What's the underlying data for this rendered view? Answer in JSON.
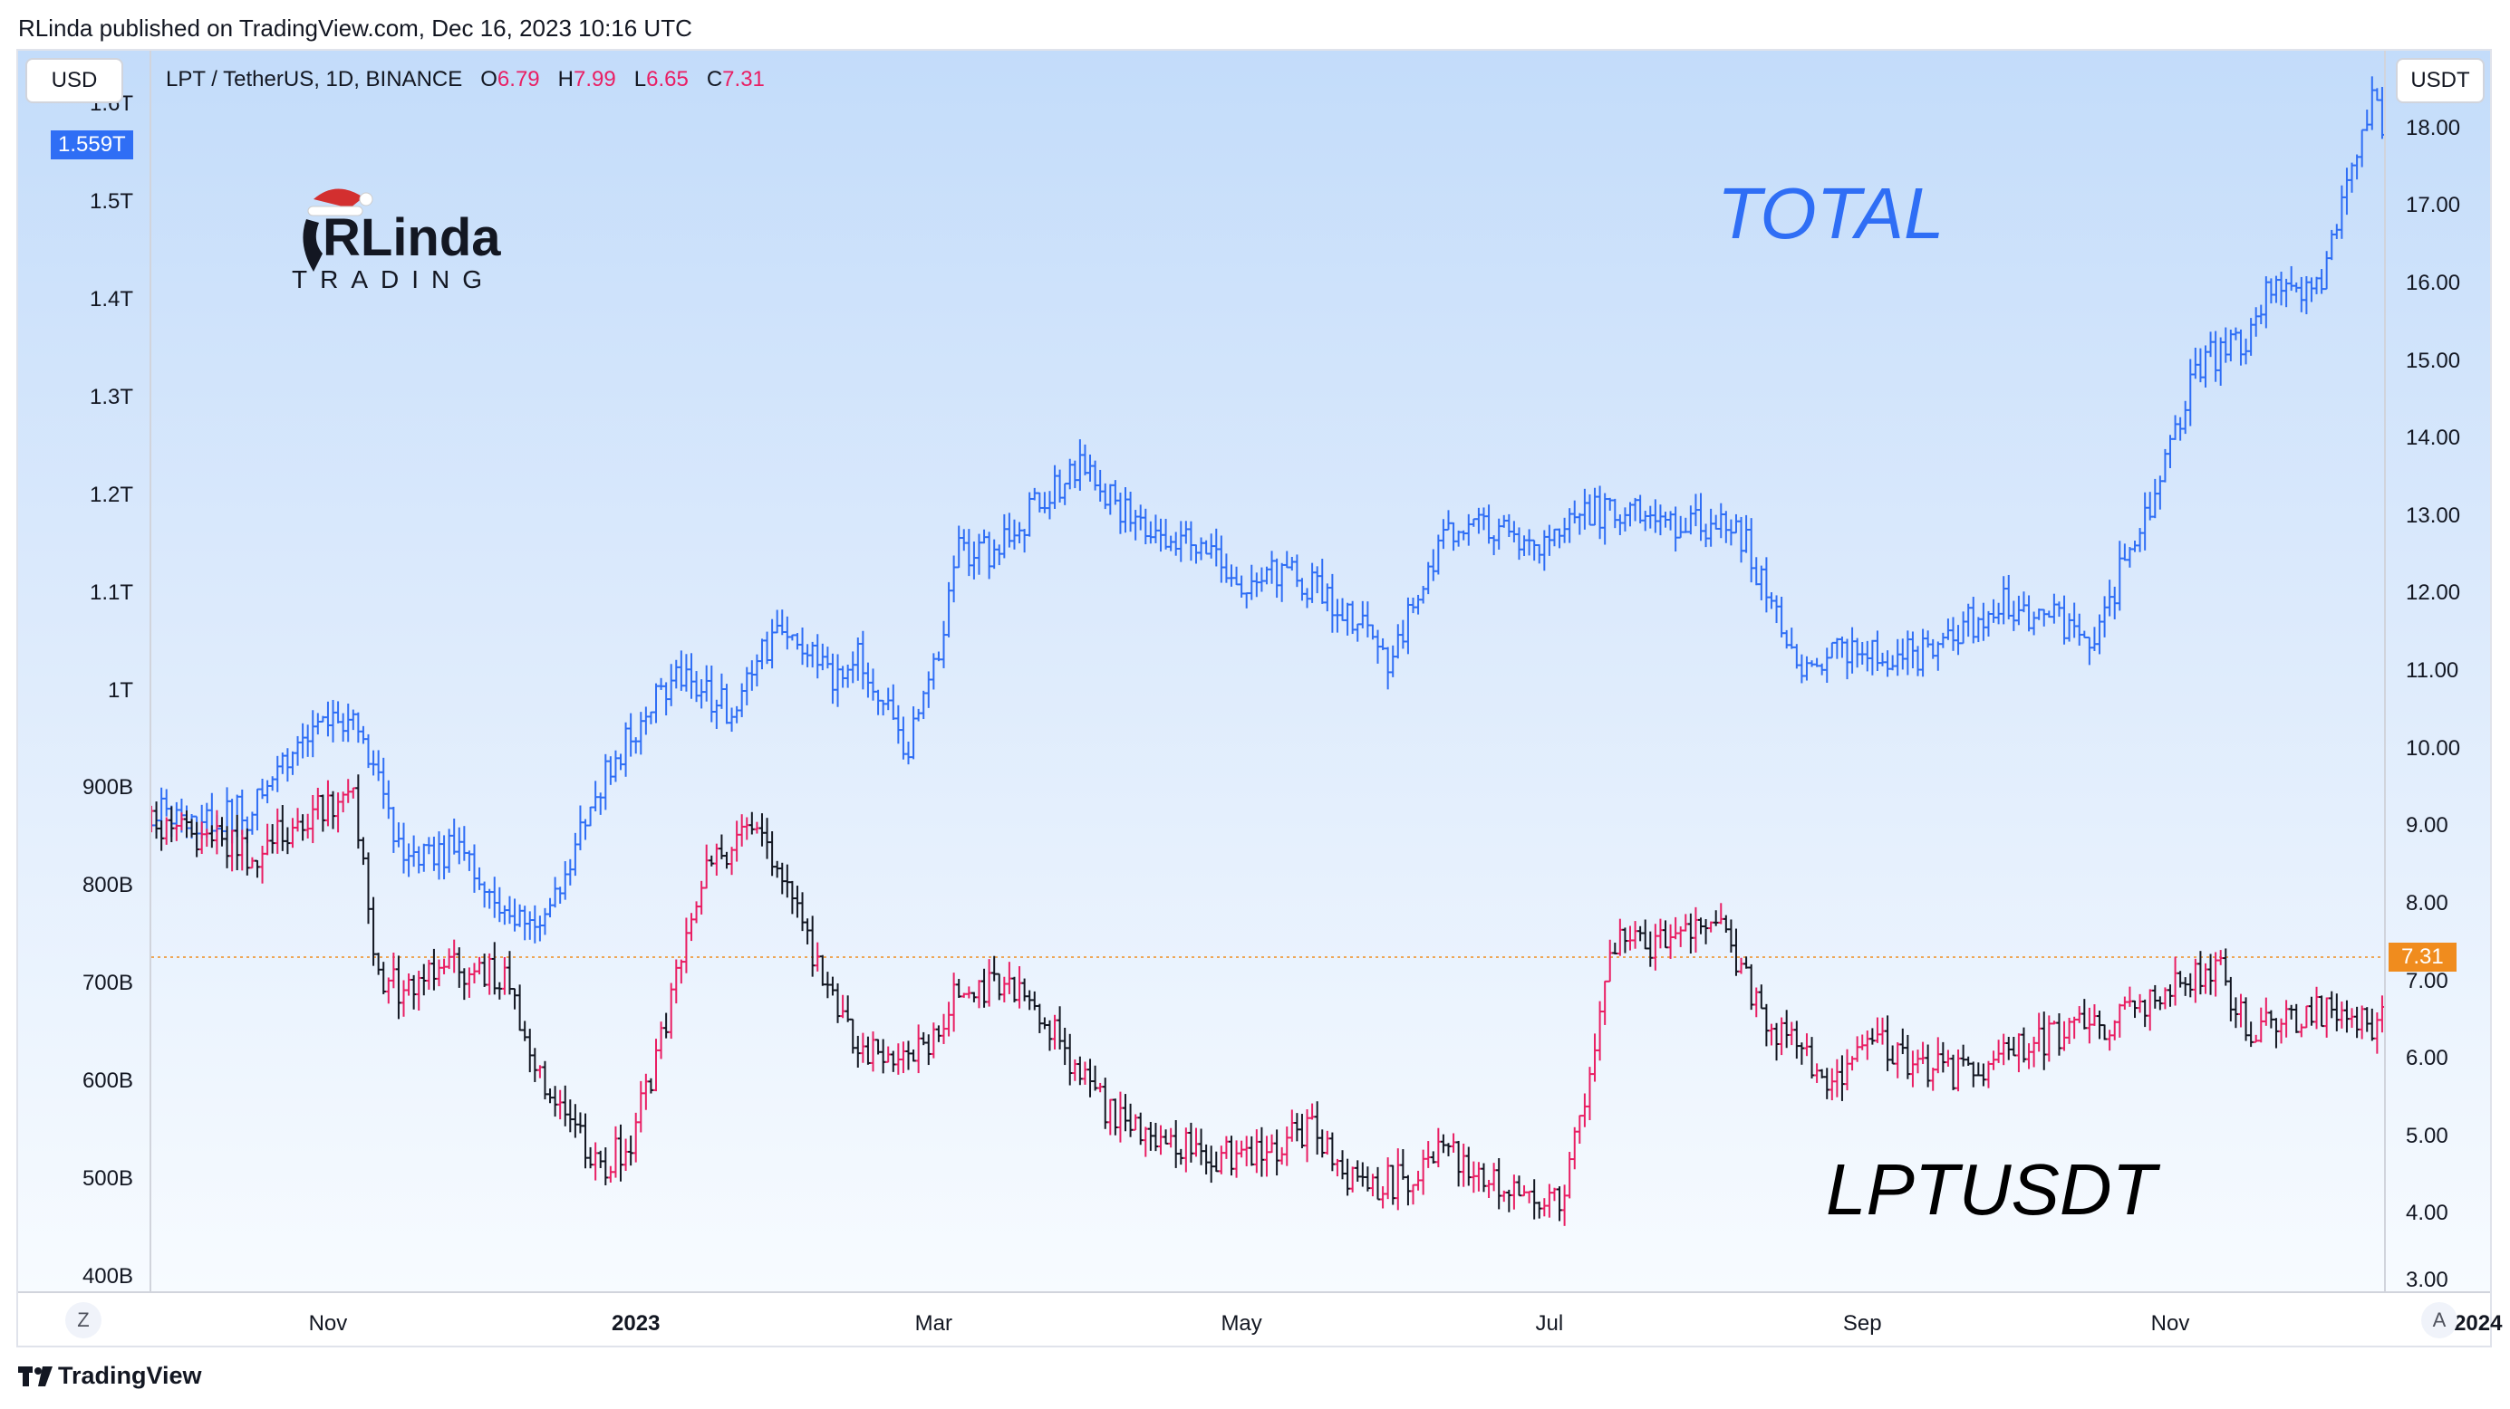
{
  "header": {
    "publisher_line": "RLinda published on TradingView.com, Dec 16, 2023 10:16 UTC"
  },
  "left_unit_chip": "USD",
  "right_unit_chip": "USDT",
  "legend": {
    "symbol": "LPT / TetherUS, 1D, BINANCE",
    "o_label": "O",
    "o_value": "6.79",
    "h_label": "H",
    "h_value": "7.99",
    "l_label": "L",
    "l_value": "6.65",
    "c_label": "C",
    "c_value": "7.31"
  },
  "logo": {
    "brand_top": "RLinda",
    "brand_bottom": "TRADING"
  },
  "labels": {
    "total": "TOTAL",
    "lptusdt": "LPTUSDT"
  },
  "price_tags": {
    "total_last": "1.559T",
    "lpt_last": "7.31"
  },
  "bottom_buttons": {
    "left": "Z",
    "right": "A"
  },
  "footer": {
    "brand": "TradingView"
  },
  "colors": {
    "total_series": "#2f6ef5",
    "lpt_up": "#e91e63",
    "lpt_down": "#131722",
    "last_price_line": "#f08c1e"
  },
  "chart_data": {
    "type": "ohlc-overlay",
    "title": "LPT / TetherUS, 1D, BINANCE",
    "left_axis": {
      "label": "USD",
      "ticks": [
        "1.6T",
        "1.5T",
        "1.4T",
        "1.3T",
        "1.2T",
        "1.1T",
        "1T",
        "900B",
        "800B",
        "700B",
        "600B",
        "500B",
        "400B"
      ],
      "tick_values": [
        1600,
        1500,
        1400,
        1300,
        1200,
        1100,
        1000,
        900,
        800,
        700,
        600,
        500,
        400
      ],
      "range": [
        385,
        1655
      ]
    },
    "right_axis": {
      "label": "USDT",
      "ticks": [
        "18.00",
        "17.00",
        "16.00",
        "15.00",
        "14.00",
        "13.00",
        "12.00",
        "11.00",
        "10.00",
        "9.00",
        "8.00",
        "7.00",
        "6.00",
        "5.00",
        "4.00",
        "3.00"
      ],
      "tick_values": [
        18,
        17,
        16,
        15,
        14,
        13,
        12,
        11,
        10,
        9,
        8,
        7,
        6,
        5,
        4,
        3
      ],
      "range": [
        3.0,
        19.0
      ]
    },
    "x_axis": {
      "ticks": [
        "Nov",
        "2023",
        "Mar",
        "May",
        "Jul",
        "Sep",
        "Nov",
        "2024"
      ],
      "bold_ticks": [
        "2023",
        "2024"
      ],
      "tick_days": [
        35,
        96,
        155,
        216,
        277,
        339,
        400,
        461
      ]
    },
    "series": [
      {
        "name": "TOTAL",
        "axis": "left",
        "unit": "billion USD",
        "days": [
          0,
          10,
          20,
          30,
          40,
          50,
          60,
          70,
          80,
          90,
          100,
          105,
          115,
          125,
          135,
          140,
          150,
          155,
          160,
          165,
          175,
          185,
          195,
          205,
          215,
          225,
          235,
          245,
          255,
          265,
          275,
          285,
          295,
          305,
          315,
          325,
          335,
          345,
          355,
          365,
          375,
          385,
          395,
          405,
          415,
          420,
          425,
          430,
          435,
          440,
          445
        ],
        "values": [
          880,
          870,
          875,
          960,
          980,
          820,
          840,
          765,
          780,
          920,
          990,
          1020,
          975,
          1075,
          1010,
          1040,
          940,
          1020,
          1140,
          1140,
          1185,
          1230,
          1165,
          1160,
          1105,
          1120,
          1090,
          1030,
          1150,
          1170,
          1150,
          1185,
          1180,
          1170,
          1160,
          1030,
          1040,
          1030,
          1045,
          1090,
          1075,
          1060,
          1175,
          1330,
          1360,
          1420,
          1410,
          1425,
          1520,
          1600,
          1559
        ]
      },
      {
        "name": "LPTUSDT",
        "axis": "right",
        "unit": "USDT",
        "days": [
          0,
          10,
          20,
          30,
          40,
          45,
          50,
          60,
          70,
          80,
          90,
          95,
          100,
          110,
          120,
          125,
          130,
          135,
          140,
          150,
          155,
          160,
          170,
          180,
          190,
          200,
          210,
          220,
          230,
          240,
          250,
          255,
          260,
          270,
          280,
          290,
          300,
          310,
          320,
          330,
          335,
          340,
          350,
          360,
          370,
          380,
          390,
          400,
          410,
          415,
          420,
          430,
          440,
          445
        ],
        "values": [
          9.0,
          8.9,
          8.6,
          9.1,
          9.5,
          7.0,
          6.9,
          7.2,
          7.1,
          5.3,
          4.6,
          5.0,
          6.0,
          8.4,
          9.1,
          8.2,
          7.6,
          6.7,
          6.2,
          5.9,
          6.3,
          6.9,
          7.0,
          6.2,
          5.3,
          5.0,
          4.7,
          4.8,
          5.1,
          4.3,
          4.5,
          4.8,
          4.7,
          4.3,
          4.2,
          7.5,
          7.5,
          7.8,
          6.5,
          5.9,
          5.6,
          6.4,
          5.9,
          5.8,
          6.1,
          6.4,
          6.5,
          7.0,
          7.1,
          6.4,
          6.5,
          6.6,
          6.4,
          7.31
        ]
      }
    ],
    "last_price_line": 7.31
  }
}
